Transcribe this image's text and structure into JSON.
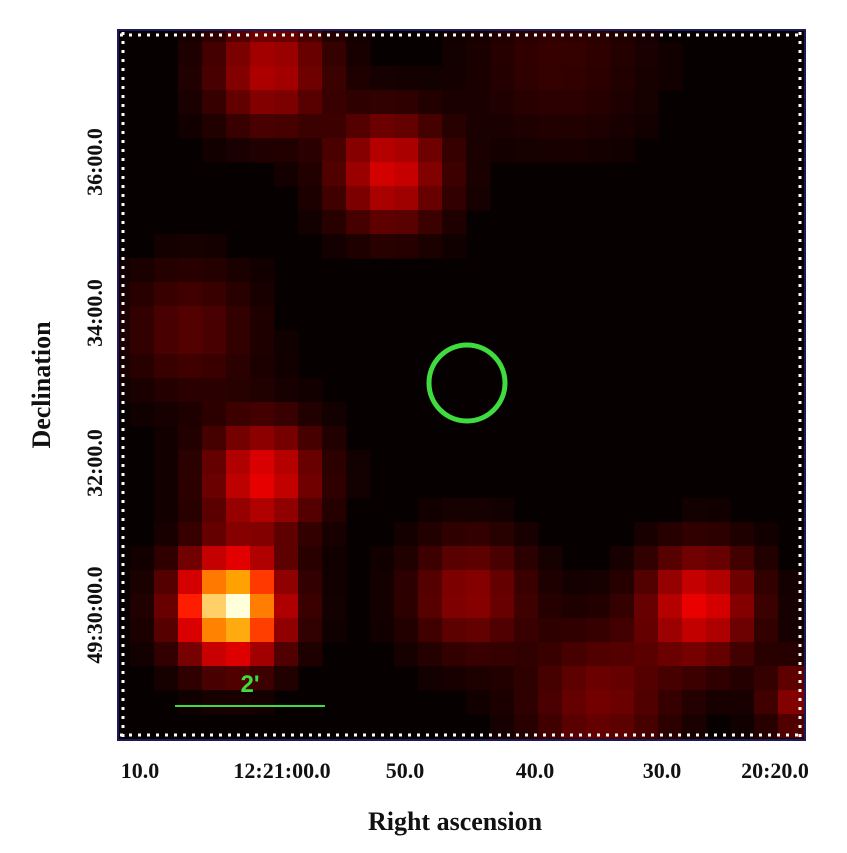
{
  "figure": {
    "x_axis": {
      "label": "Right ascension",
      "ticks": [
        "10.0",
        "12:21:00.0",
        "50.0",
        "40.0",
        "30.0",
        "20:20.0"
      ]
    },
    "y_axis": {
      "label": "Declination",
      "ticks": [
        "49:30:00.0",
        "32:00.0",
        "34:00.0",
        "36:00.0"
      ]
    },
    "scale_bar": {
      "label": "2'"
    }
  }
}
